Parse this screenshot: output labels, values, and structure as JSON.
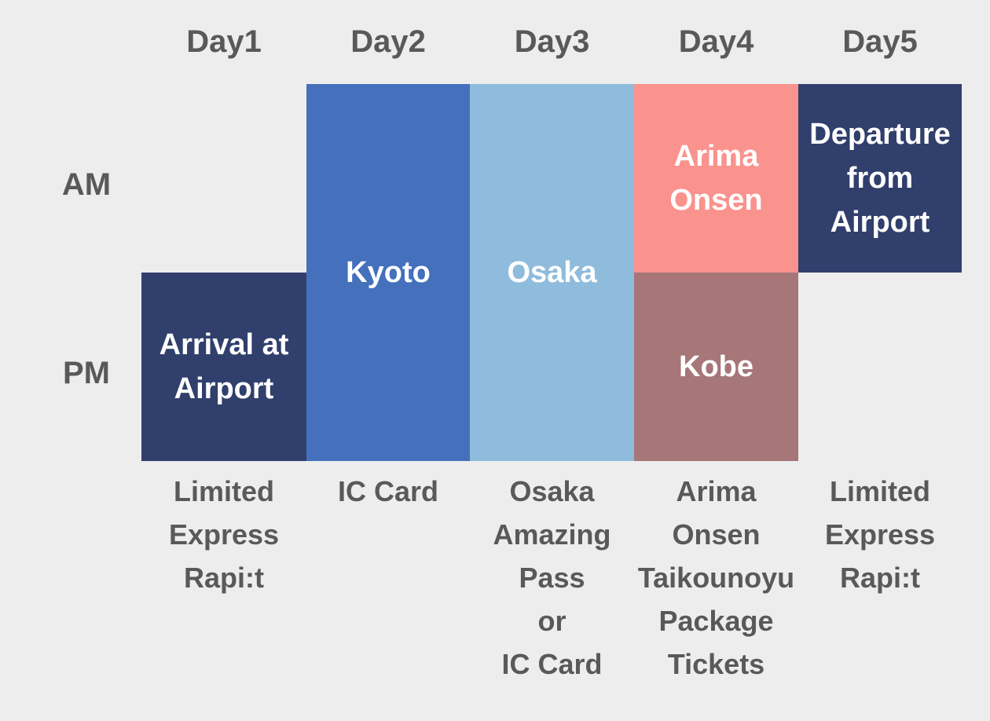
{
  "chart": {
    "day_headers": [
      "Day1",
      "Day2",
      "Day3",
      "Day4",
      "Day5"
    ],
    "row_labels": {
      "am": "AM",
      "pm": "PM"
    },
    "blocks": {
      "day1_pm": {
        "label": "Arrival at\nAirport",
        "color": "#313F6D"
      },
      "day2_full": {
        "label": "Kyoto",
        "color": "#4470BC"
      },
      "day3_full": {
        "label": "Osaka",
        "color": "#8FBCDC"
      },
      "day4_am": {
        "label": "Arima\nOnsen",
        "color": "#FA928D"
      },
      "day4_pm": {
        "label": "Kobe",
        "color": "#A67678"
      },
      "day5_am": {
        "label": "Departure\nfrom\nAirport",
        "color": "#313F6D"
      }
    },
    "footers": {
      "day1": "Limited\nExpress\nRapi:t",
      "day2": "IC Card",
      "day3": "Osaka\nAmazing\nPass\nor\nIC Card",
      "day4": "Arima\nOnsen\nTaikounoyu\nPackage\nTickets",
      "day5": "Limited\nExpress\nRapi:t"
    },
    "colors": {
      "background": "#EDEDEE",
      "label_text": "#595959",
      "block_text": "#FFFFFF"
    }
  },
  "chart_data": {
    "type": "table",
    "title": "5-day Kansai itinerary (AM/PM schedule)",
    "columns": [
      "Day1",
      "Day2",
      "Day3",
      "Day4",
      "Day5"
    ],
    "rows": [
      "AM",
      "PM"
    ],
    "cells": {
      "AM": [
        "",
        "Kyoto",
        "Osaka",
        "Arima Onsen",
        "Departure from Airport"
      ],
      "PM": [
        "Arrival at Airport",
        "Kyoto",
        "Osaka",
        "Kobe",
        ""
      ]
    },
    "cell_colors": {
      "AM": [
        "",
        "#4470BC",
        "#8FBCDC",
        "#FA928D",
        "#313F6D"
      ],
      "PM": [
        "#313F6D",
        "#4470BC",
        "#8FBCDC",
        "#A67678",
        ""
      ]
    },
    "column_footnotes": [
      "Limited Express Rapi:t",
      "IC Card",
      "Osaka Amazing Pass or IC Card",
      "Arima Onsen Taikounoyu Package Tickets",
      "Limited Express Rapi:t"
    ],
    "legend_position": "none",
    "grid": false
  }
}
